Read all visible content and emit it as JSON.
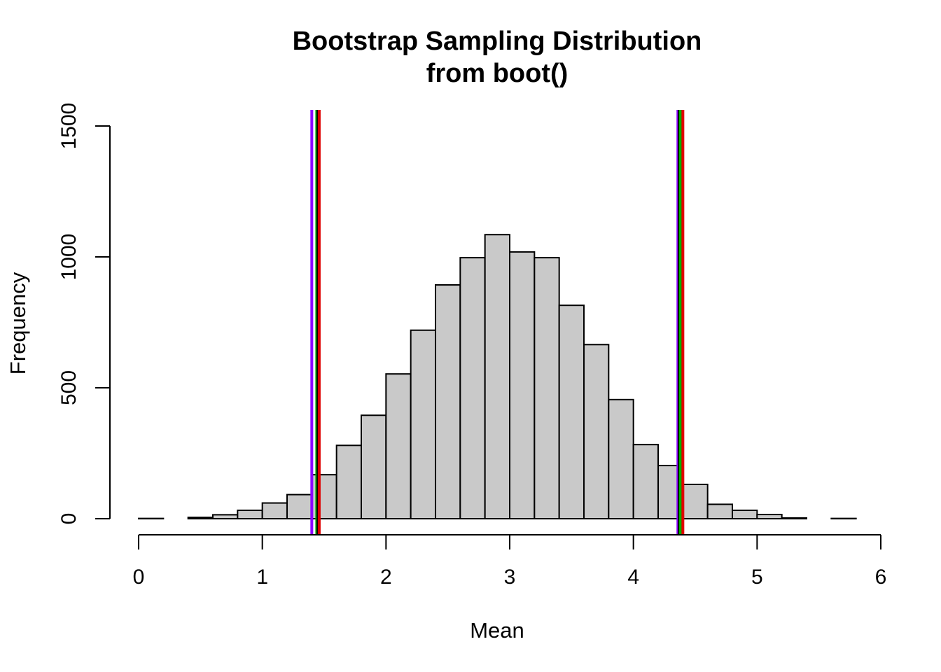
{
  "chart_data": {
    "type": "bar",
    "title": "Bootstrap Sampling Distribution",
    "subtitle": "from boot()",
    "xlabel": "Mean",
    "ylabel": "Frequency",
    "xlim": [
      0,
      6
    ],
    "ylim": [
      0,
      1500
    ],
    "x_ticks": [
      "0",
      "1",
      "2",
      "3",
      "4",
      "5",
      "6"
    ],
    "y_ticks": [
      "0",
      "500",
      "1000",
      "1500"
    ],
    "bin_width": 0.2,
    "bins": [
      {
        "x0": 0.0,
        "x1": 0.2,
        "count": 1
      },
      {
        "x0": 0.2,
        "x1": 0.4,
        "count": 0
      },
      {
        "x0": 0.4,
        "x1": 0.6,
        "count": 5
      },
      {
        "x0": 0.6,
        "x1": 0.8,
        "count": 15
      },
      {
        "x0": 0.8,
        "x1": 1.0,
        "count": 32
      },
      {
        "x0": 1.0,
        "x1": 1.2,
        "count": 60
      },
      {
        "x0": 1.2,
        "x1": 1.4,
        "count": 92
      },
      {
        "x0": 1.4,
        "x1": 1.6,
        "count": 168
      },
      {
        "x0": 1.6,
        "x1": 1.8,
        "count": 280
      },
      {
        "x0": 1.8,
        "x1": 2.0,
        "count": 395
      },
      {
        "x0": 2.0,
        "x1": 2.2,
        "count": 553
      },
      {
        "x0": 2.2,
        "x1": 2.4,
        "count": 720
      },
      {
        "x0": 2.4,
        "x1": 2.6,
        "count": 893
      },
      {
        "x0": 2.6,
        "x1": 2.8,
        "count": 997
      },
      {
        "x0": 2.8,
        "x1": 3.0,
        "count": 1085
      },
      {
        "x0": 3.0,
        "x1": 3.2,
        "count": 1019
      },
      {
        "x0": 3.2,
        "x1": 3.4,
        "count": 997
      },
      {
        "x0": 3.4,
        "x1": 3.6,
        "count": 815
      },
      {
        "x0": 3.6,
        "x1": 3.8,
        "count": 665
      },
      {
        "x0": 3.8,
        "x1": 4.0,
        "count": 455
      },
      {
        "x0": 4.0,
        "x1": 4.2,
        "count": 283
      },
      {
        "x0": 4.2,
        "x1": 4.4,
        "count": 203
      },
      {
        "x0": 4.4,
        "x1": 4.6,
        "count": 131
      },
      {
        "x0": 4.6,
        "x1": 4.8,
        "count": 55
      },
      {
        "x0": 4.8,
        "x1": 5.0,
        "count": 32
      },
      {
        "x0": 5.0,
        "x1": 5.2,
        "count": 16
      },
      {
        "x0": 5.2,
        "x1": 5.4,
        "count": 3
      },
      {
        "x0": 5.4,
        "x1": 5.6,
        "count": 0
      },
      {
        "x0": 5.6,
        "x1": 5.8,
        "count": 1
      }
    ],
    "vertical_lines": [
      {
        "x": 1.4,
        "color": "#8B00FF"
      },
      {
        "x": 1.44,
        "color": "#00B000"
      },
      {
        "x": 1.45,
        "color": "#000000"
      },
      {
        "x": 1.46,
        "color": "#E00000"
      },
      {
        "x": 4.36,
        "color": "#8B00FF"
      },
      {
        "x": 4.37,
        "color": "#000000"
      },
      {
        "x": 4.38,
        "color": "#00B000"
      },
      {
        "x": 4.4,
        "color": "#E00000"
      }
    ],
    "bar_fill": "#c9c9c9",
    "grid": false,
    "legend": "none"
  }
}
